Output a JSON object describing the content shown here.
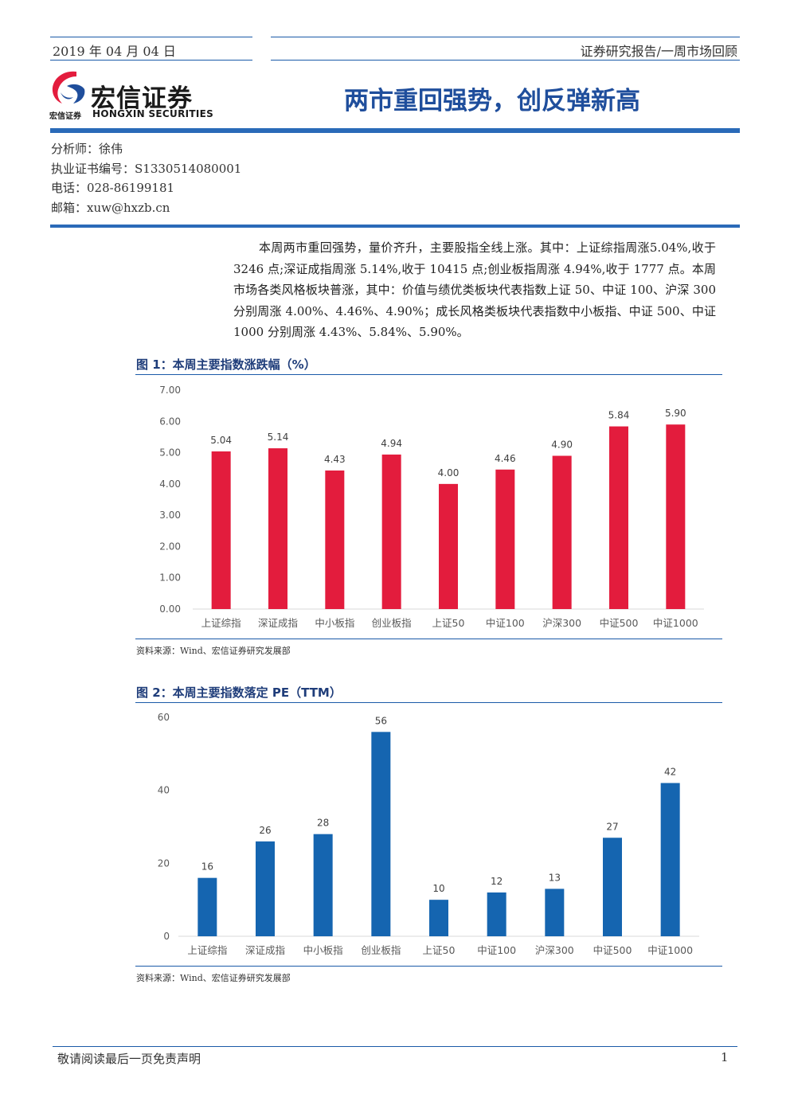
{
  "header": {
    "date": "2019 年 04 月 04 日",
    "report_type": "证券研究报告/一周市场回顾"
  },
  "logo": {
    "cn_name": "宏信证券",
    "small_name": "宏信证券",
    "en_name": "HONGXIN SECURITIES"
  },
  "title": "两市重回强势，创反弹新高",
  "analyst": {
    "name_line": "分析师：徐伟",
    "cert_line": "执业证书编号：S1330514080001",
    "phone_line": "电话：028-86199181",
    "email_line": "邮箱：xuw@hxzb.cn"
  },
  "summary": "本周两市重回强势，量价齐升，主要股指全线上涨。其中：上证综指周涨5.04%,收于 3246 点;深证成指周涨 5.14%,收于 10415 点;创业板指周涨 4.94%,收于 1777 点。本周市场各类风格板块普涨，其中：价值与绩优类板块代表指数上证 50、中证 100、沪深 300 分别周涨 4.00%、4.46%、4.90%；成长风格类板块代表指数中小板指、中证 500、中证 1000 分别周涨 4.43%、5.84%、5.90%。",
  "figure1": {
    "title": "图 1：本周主要指数涨跌幅（%）",
    "source": "资料来源：Wind、宏信证券研究发展部"
  },
  "figure2": {
    "title": "图 2：本周主要指数落定 PE（TTM）",
    "source": "资料来源：Wind、宏信证券研究发展部"
  },
  "chart_data": [
    {
      "type": "bar",
      "categories": [
        "上证综指",
        "深证成指",
        "中小板指",
        "创业板指",
        "上证50",
        "中证100",
        "沪深300",
        "中证500",
        "中证1000"
      ],
      "values": [
        5.04,
        5.14,
        4.43,
        4.94,
        4.0,
        4.46,
        4.9,
        5.84,
        5.9
      ],
      "data_labels": [
        "5.04",
        "5.14",
        "4.43",
        "4.94",
        "4.00",
        "4.46",
        "4.90",
        "5.84",
        "5.90"
      ],
      "yticks": [
        "0.00",
        "1.00",
        "2.00",
        "3.00",
        "4.00",
        "5.00",
        "6.00",
        "7.00"
      ],
      "ylim": [
        0,
        7
      ],
      "color": "#e31c3d",
      "grid": false
    },
    {
      "type": "bar",
      "categories": [
        "上证综指",
        "深证成指",
        "中小板指",
        "创业板指",
        "上证50",
        "中证100",
        "沪深300",
        "中证500",
        "中证1000"
      ],
      "values": [
        16,
        26,
        28,
        56,
        10,
        12,
        13,
        27,
        42
      ],
      "data_labels": [
        "16",
        "26",
        "28",
        "56",
        "10",
        "12",
        "13",
        "27",
        "42"
      ],
      "yticks": [
        "0",
        "20",
        "40",
        "60"
      ],
      "ylim": [
        0,
        60
      ],
      "color": "#1565b0",
      "grid": false
    }
  ],
  "footer": {
    "disclaimer": "敬请阅读最后一页免责声明",
    "page": "1"
  }
}
